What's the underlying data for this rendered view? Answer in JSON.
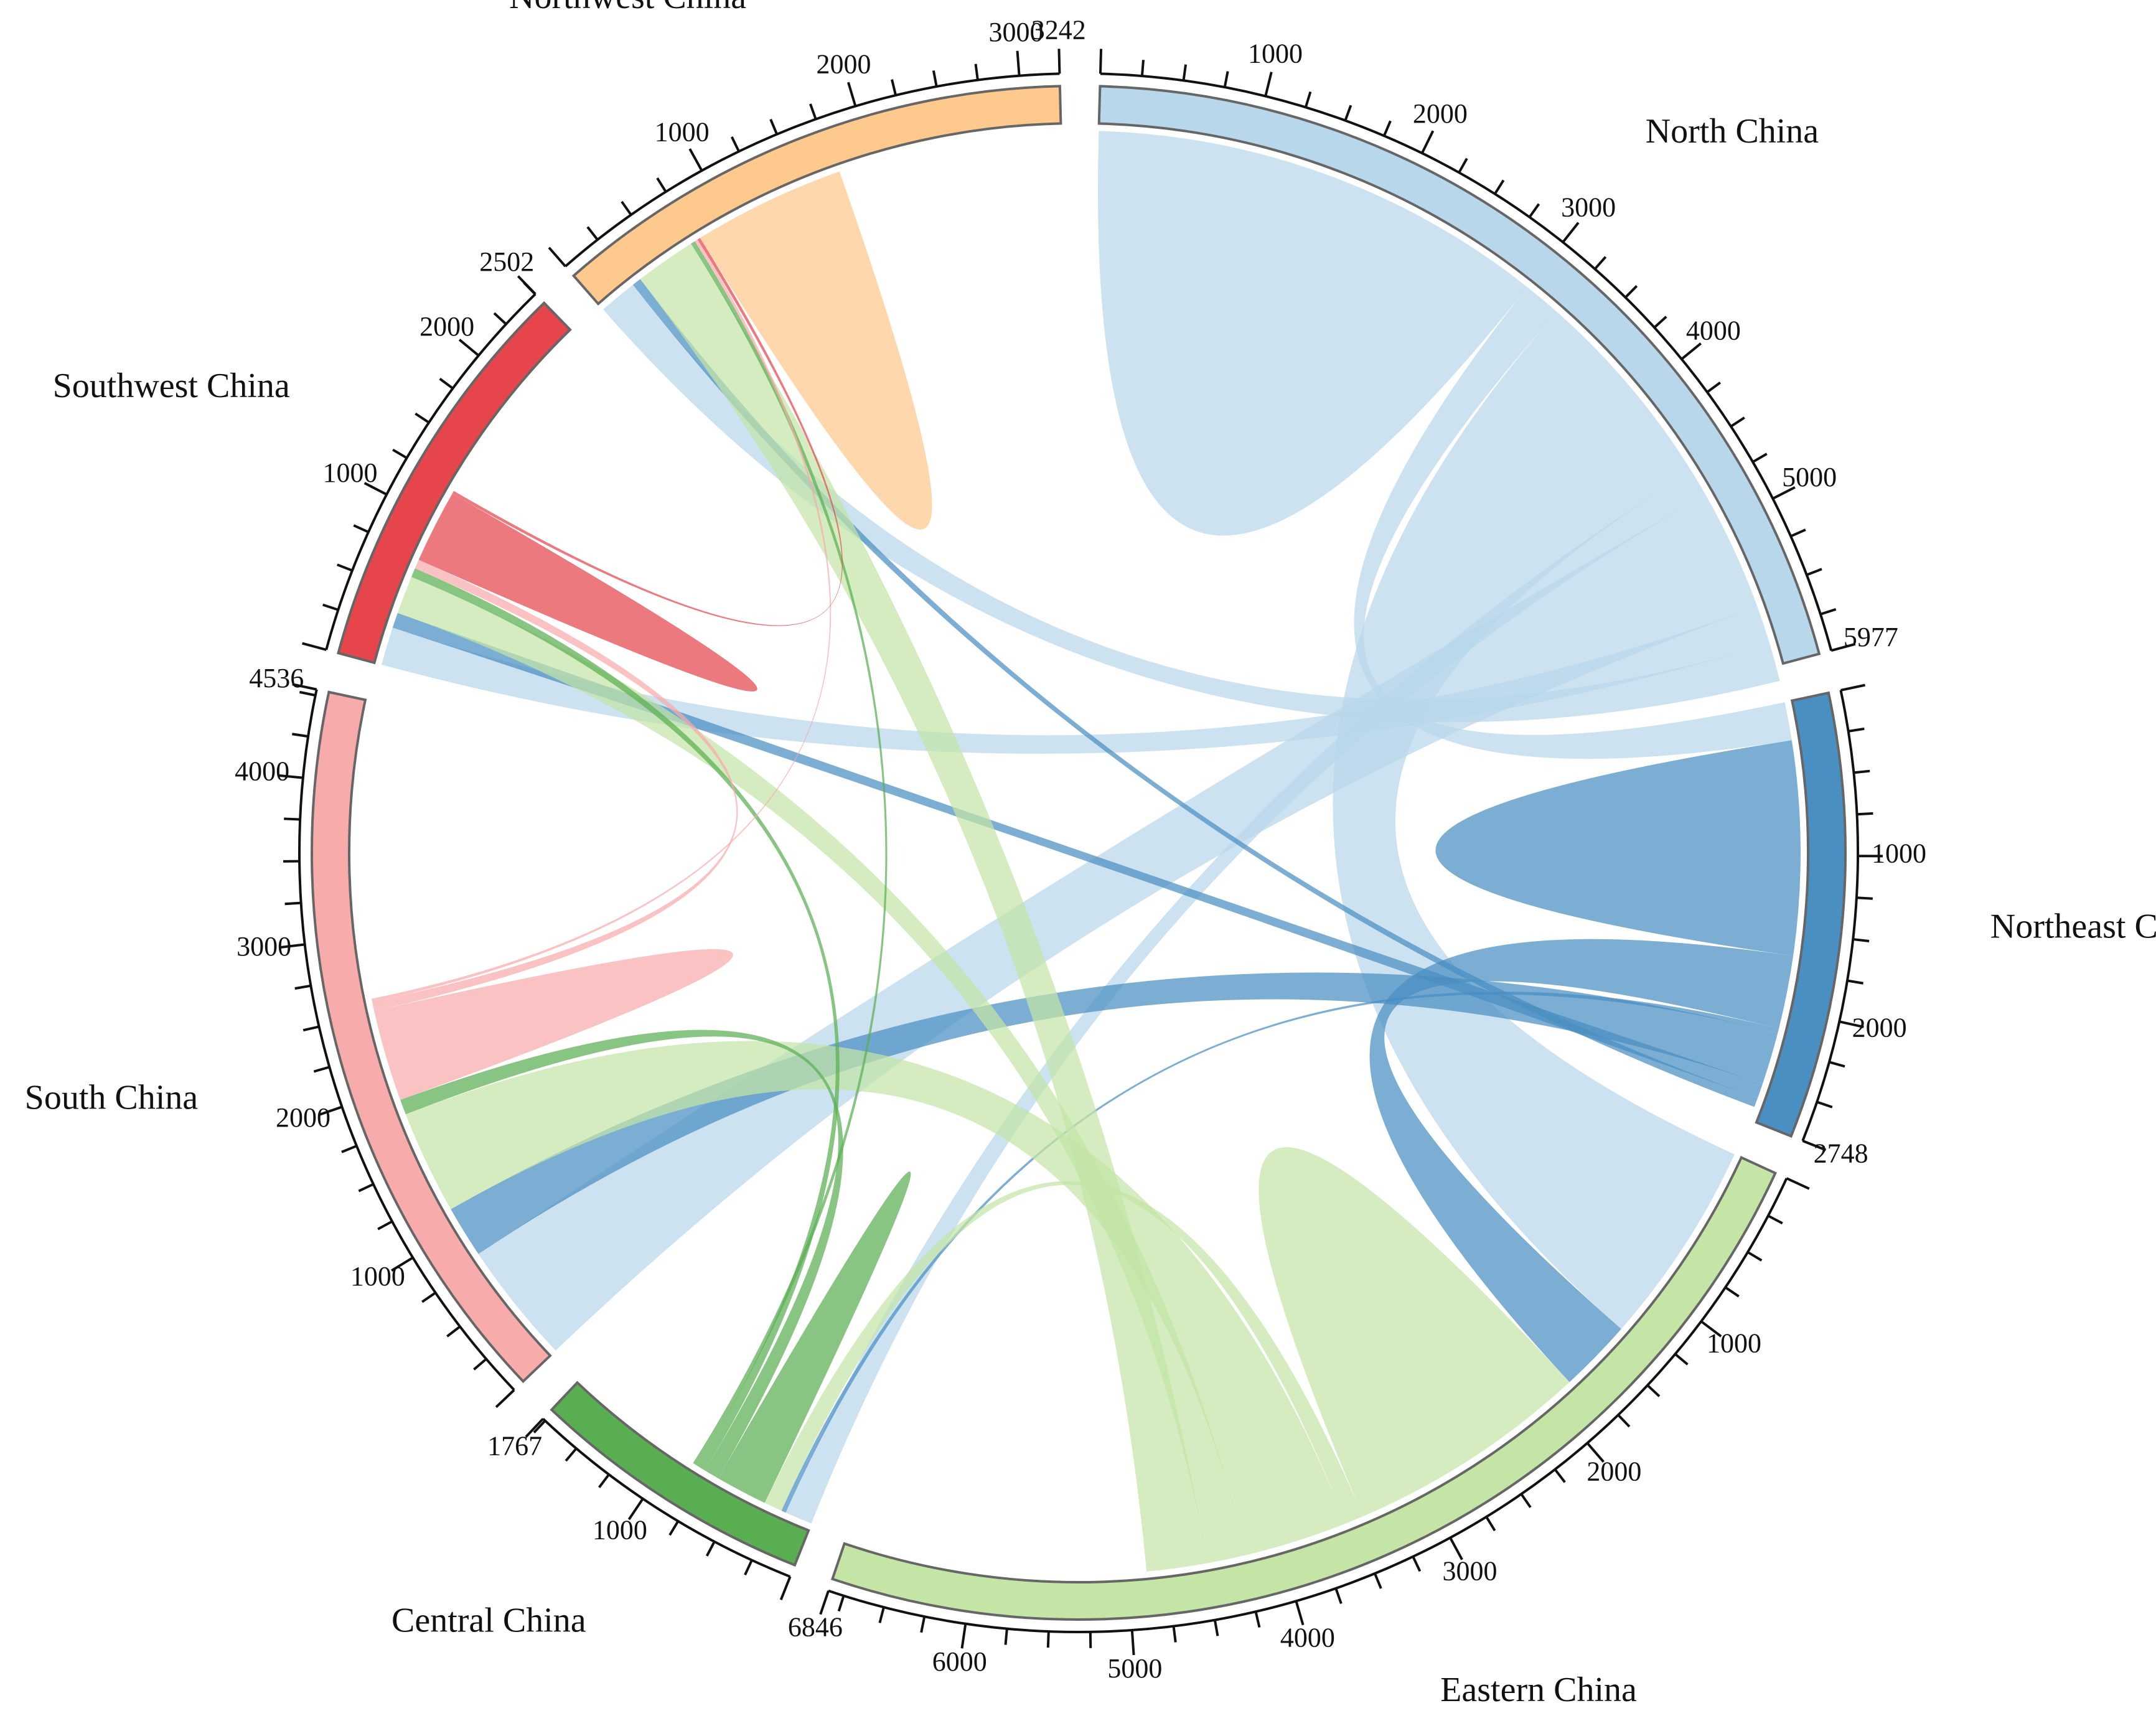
{
  "chart_data": {
    "type": "chord",
    "title": "",
    "regions": [
      {
        "name": "North China",
        "total": 5977,
        "color": "#b9d7ea"
      },
      {
        "name": "Northeast China",
        "total": 2748,
        "color": "#4a8fc2"
      },
      {
        "name": "Eastern China",
        "total": 6846,
        "color": "#c4e5a6"
      },
      {
        "name": "Central China",
        "total": 1767,
        "color": "#5aae52"
      },
      {
        "name": "South China",
        "total": 4536,
        "color": "#f8abab"
      },
      {
        "name": "Southwest China",
        "total": 2502,
        "color": "#e5454b"
      },
      {
        "name": "Northwest China",
        "total": 3242,
        "color": "#fdc98c"
      }
    ],
    "tick_interval": 1000,
    "flows": [
      {
        "from": "North China",
        "to": "North China",
        "value": 1500
      },
      {
        "from": "North China",
        "to": "Northeast China",
        "value": 250
      },
      {
        "from": "North China",
        "to": "Eastern China",
        "value": 1350
      },
      {
        "from": "North China",
        "to": "Central China",
        "value": 180
      },
      {
        "from": "North China",
        "to": "South China",
        "value": 800
      },
      {
        "from": "North China",
        "to": "Southwest China",
        "value": 250
      },
      {
        "from": "North China",
        "to": "Northwest China",
        "value": 250
      },
      {
        "from": "Northeast China",
        "to": "Northeast China",
        "value": 700
      },
      {
        "from": "Northeast China",
        "to": "Eastern China",
        "value": 480
      },
      {
        "from": "Northeast China",
        "to": "Central China",
        "value": 30
      },
      {
        "from": "Northeast China",
        "to": "South China",
        "value": 340
      },
      {
        "from": "Northeast China",
        "to": "Southwest China",
        "value": 100
      },
      {
        "from": "Northeast China",
        "to": "Northwest China",
        "value": 60
      },
      {
        "from": "Eastern China",
        "to": "Eastern China",
        "value": 800
      },
      {
        "from": "Eastern China",
        "to": "Central China",
        "value": 120
      },
      {
        "from": "Eastern China",
        "to": "South China",
        "value": 680
      },
      {
        "from": "Eastern China",
        "to": "Southwest China",
        "value": 250
      },
      {
        "from": "Eastern China",
        "to": "Northwest China",
        "value": 400
      },
      {
        "from": "Central China",
        "to": "Central China",
        "value": 170
      },
      {
        "from": "Central China",
        "to": "South China",
        "value": 100
      },
      {
        "from": "Central China",
        "to": "Southwest China",
        "value": 60
      },
      {
        "from": "Central China",
        "to": "Northwest China",
        "value": 30
      },
      {
        "from": "South China",
        "to": "South China",
        "value": 300
      },
      {
        "from": "South China",
        "to": "Southwest China",
        "value": 60
      },
      {
        "from": "South China",
        "to": "Northwest China",
        "value": 20
      },
      {
        "from": "Southwest China",
        "to": "Southwest China",
        "value": 240
      },
      {
        "from": "Southwest China",
        "to": "Northwest China",
        "value": 20
      },
      {
        "from": "Northwest China",
        "to": "Northwest China",
        "value": 500
      }
    ]
  }
}
